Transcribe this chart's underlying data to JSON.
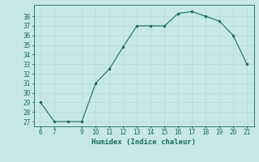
{
  "x": [
    6,
    7,
    8,
    9,
    10,
    11,
    12,
    13,
    14,
    15,
    16,
    17,
    18,
    19,
    20,
    21
  ],
  "y": [
    29,
    27,
    27,
    27,
    31,
    32.5,
    34.8,
    37,
    37,
    37,
    38.3,
    38.5,
    38,
    37.5,
    36,
    33
  ],
  "line_color": "#1a6b5a",
  "marker_color": "#1a6b5a",
  "bg_color": "#c8e8e8",
  "grid_color": "#b8d8d8",
  "xlabel": "Humidex (Indice chaleur)",
  "xlabel_fontsize": 6.5,
  "tick_fontsize": 5.5,
  "ylim": [
    26.5,
    39.2
  ],
  "xlim": [
    5.5,
    21.5
  ],
  "yticks": [
    27,
    28,
    29,
    30,
    31,
    32,
    33,
    34,
    35,
    36,
    37,
    38
  ],
  "xticks": [
    6,
    7,
    9,
    10,
    11,
    12,
    13,
    14,
    15,
    16,
    17,
    18,
    19,
    20,
    21
  ]
}
